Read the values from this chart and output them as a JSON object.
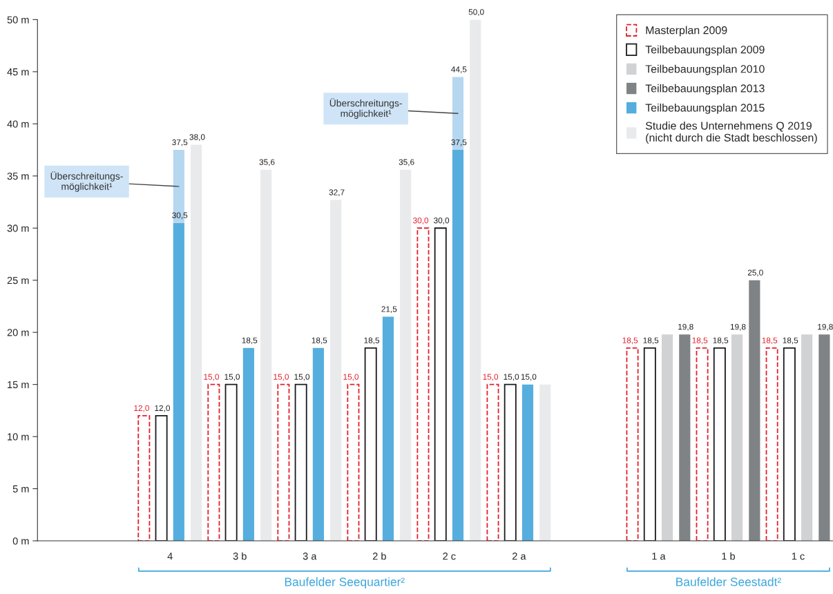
{
  "chart_data": {
    "type": "bar",
    "categories": [
      null,
      "4",
      "3 b",
      "3 a",
      "2 b",
      "2 c",
      "2 a",
      null,
      "1 a",
      "1 b",
      "1 c"
    ],
    "series": [
      {
        "name": "Masterplan 2009",
        "color": "#e3202a",
        "line_style": "dashed",
        "values": [
          null,
          12.0,
          15.0,
          15.0,
          15.0,
          30.0,
          15.0,
          null,
          18.5,
          18.5,
          18.5
        ],
        "value_labels": [
          null,
          "12,0",
          "15,0",
          "15,0",
          "15,0",
          "30,0",
          "15,0",
          null,
          "18,5",
          "18,5",
          "18,5"
        ]
      },
      {
        "name": "Teilbebauungsplan 2009",
        "color": "#1a1a1a",
        "line_style": "solid",
        "values": [
          null,
          12.0,
          15.0,
          15.0,
          18.5,
          30.0,
          15.0,
          null,
          18.5,
          18.5,
          18.5
        ],
        "value_labels": [
          null,
          "12,0",
          "15,0",
          "15,0",
          "18,5",
          "30,0",
          "15,0",
          null,
          "18,5",
          "18,5",
          "18,5"
        ]
      },
      {
        "name": "Teilbebauungsplan 2010",
        "color": "#d0d2d4",
        "values": [
          null,
          null,
          null,
          null,
          null,
          null,
          null,
          null,
          19.8,
          19.8,
          19.8
        ],
        "value_labels": [
          null,
          null,
          null,
          null,
          null,
          null,
          null,
          null,
          null,
          "19,8",
          null
        ]
      },
      {
        "name": "Teilbebauungsplan 2013",
        "color": "#7f8386",
        "values": [
          null,
          null,
          null,
          null,
          null,
          null,
          null,
          null,
          19.8,
          25.0,
          19.8
        ],
        "value_labels": [
          null,
          null,
          null,
          null,
          null,
          null,
          null,
          null,
          "19,8",
          "25,0",
          "19,8"
        ]
      },
      {
        "name": "Teilbebauungsplan 2015",
        "color": "#55aedd",
        "values": [
          null,
          30.5,
          18.5,
          18.5,
          21.5,
          37.5,
          15.0,
          null,
          null,
          null,
          null
        ],
        "value_labels": [
          null,
          "30,5",
          "18,5",
          "18,5",
          "21,5",
          "37,5",
          "15,0",
          null,
          null,
          null,
          null
        ]
      },
      {
        "color": "#b6d7f0",
        "base": [
          null,
          30.5,
          null,
          null,
          null,
          37.5,
          null,
          null,
          null,
          null,
          null
        ],
        "values": [
          null,
          7.0,
          null,
          null,
          null,
          7.0,
          null,
          null,
          null,
          null,
          null
        ],
        "value_labels": [
          null,
          "37,5",
          null,
          null,
          null,
          "44,5",
          null,
          null,
          null,
          null,
          null
        ]
      },
      {
        "name": "Studie des Unternehmens Q 2019\n(nicht durch die Stadt beschlossen)",
        "color": "#e9eaec",
        "values": [
          null,
          38.0,
          35.6,
          32.7,
          35.6,
          50.0,
          15.0,
          null,
          null,
          null,
          null
        ],
        "value_labels": [
          null,
          "38,0",
          "35,6",
          "32,7",
          "35,6",
          "50,0",
          null,
          null,
          null,
          null,
          null
        ]
      }
    ],
    "ylim": [
      0,
      50
    ],
    "yticks": [
      {
        "value": 0,
        "label": "0 m"
      },
      {
        "value": 5,
        "label": "5 m"
      },
      {
        "value": 10,
        "label": "10 m"
      },
      {
        "value": 15,
        "label": "15 m"
      },
      {
        "value": 20,
        "label": "20 m"
      },
      {
        "value": 25,
        "label": "25 m"
      },
      {
        "value": 30,
        "label": "30 m"
      },
      {
        "value": 35,
        "label": "35 m"
      },
      {
        "value": 40,
        "label": "40 m"
      },
      {
        "value": 45,
        "label": "45 m"
      },
      {
        "value": 50,
        "label": "50 m"
      }
    ],
    "annotations": [
      "Überschreitungs-\nmöglichkeit¹",
      "Überschreitungs-\nmöglichkeit¹",
      "Baufelder Seequartier²",
      "Baufelder Seestadt²"
    ],
    "grid": false,
    "legend": "top right"
  }
}
